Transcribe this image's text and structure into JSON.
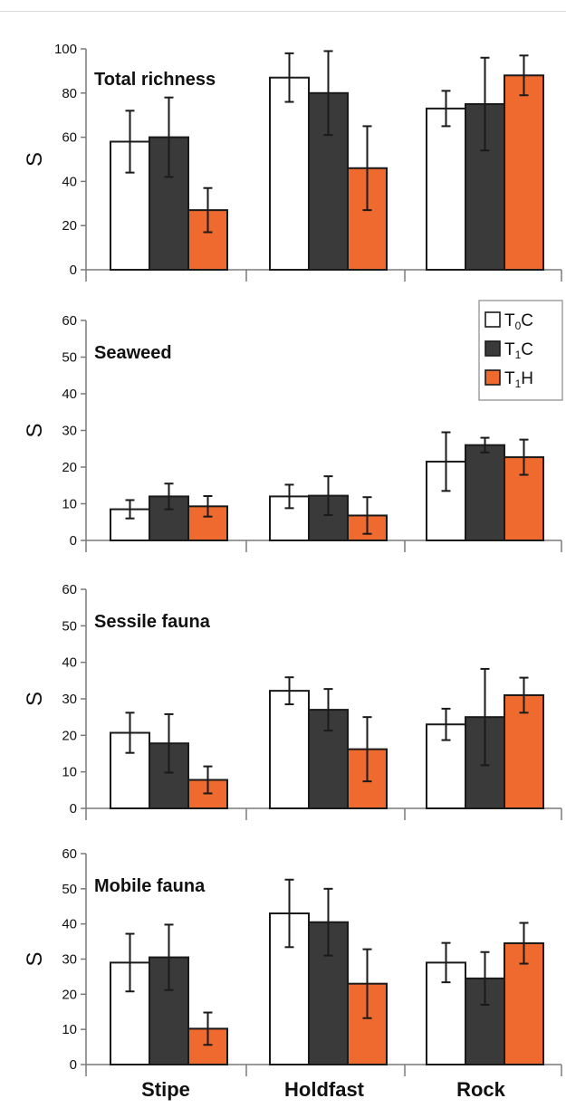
{
  "chart_data": {
    "type": "bar",
    "categories": [
      "Stipe",
      "Holdfast",
      "Rock"
    ],
    "legend": {
      "placement": "top-right of second panel",
      "entries": [
        {
          "main": "T",
          "sub": "0",
          "rest": "C",
          "color": "#ffffff"
        },
        {
          "main": "T",
          "sub": "1",
          "rest": "C",
          "color": "#3a3a3a"
        },
        {
          "main": "T",
          "sub": "1",
          "rest": "H",
          "color": "#ef6a2e"
        }
      ]
    },
    "panels": [
      {
        "title": "Total richness",
        "ylabel": "S",
        "ylim": [
          0,
          100
        ],
        "yticks": [
          "0",
          "20",
          "40",
          "60",
          "80",
          "100"
        ],
        "series": [
          {
            "values": [
              58,
              87,
              73
            ],
            "errors": [
              14,
              11,
              8
            ]
          },
          {
            "values": [
              60,
              80,
              75
            ],
            "errors": [
              18,
              19,
              21
            ]
          },
          {
            "values": [
              27,
              46,
              88
            ],
            "errors": [
              10,
              19,
              9
            ]
          }
        ]
      },
      {
        "title": "Seaweed",
        "ylabel": "S",
        "ylim": [
          0,
          60
        ],
        "yticks": [
          "0",
          "10",
          "20",
          "30",
          "40",
          "50",
          "60"
        ],
        "series": [
          {
            "values": [
              8.5,
              12,
              21.5
            ],
            "errors": [
              2.5,
              3.2,
              8
            ]
          },
          {
            "values": [
              12,
              12.2,
              26
            ],
            "errors": [
              3.5,
              5.3,
              2
            ]
          },
          {
            "values": [
              9.3,
              6.8,
              22.7
            ],
            "errors": [
              2.8,
              5,
              4.8
            ]
          }
        ]
      },
      {
        "title": "Sessile fauna",
        "ylabel": "S",
        "ylim": [
          0,
          60
        ],
        "yticks": [
          "0",
          "10",
          "20",
          "30",
          "40",
          "50",
          "60"
        ],
        "series": [
          {
            "values": [
              20.7,
              32.2,
              23
            ],
            "errors": [
              5.5,
              3.7,
              4.3
            ]
          },
          {
            "values": [
              17.8,
              27,
              25
            ],
            "errors": [
              8,
              5.7,
              13.2
            ]
          },
          {
            "values": [
              7.8,
              16.2,
              31
            ],
            "errors": [
              3.7,
              8.8,
              4.8
            ]
          }
        ]
      },
      {
        "title": "Mobile fauna",
        "ylabel": "S",
        "ylim": [
          0,
          60
        ],
        "yticks": [
          "0",
          "10",
          "20",
          "30",
          "40",
          "50",
          "60"
        ],
        "series": [
          {
            "values": [
              29,
              43,
              29
            ],
            "errors": [
              8.2,
              9.6,
              5.6
            ]
          },
          {
            "values": [
              30.5,
              40.5,
              24.5
            ],
            "errors": [
              9.3,
              9.5,
              7.5
            ]
          },
          {
            "values": [
              10.2,
              23,
              34.5
            ],
            "errors": [
              4.6,
              9.8,
              5.8
            ]
          }
        ]
      }
    ]
  }
}
